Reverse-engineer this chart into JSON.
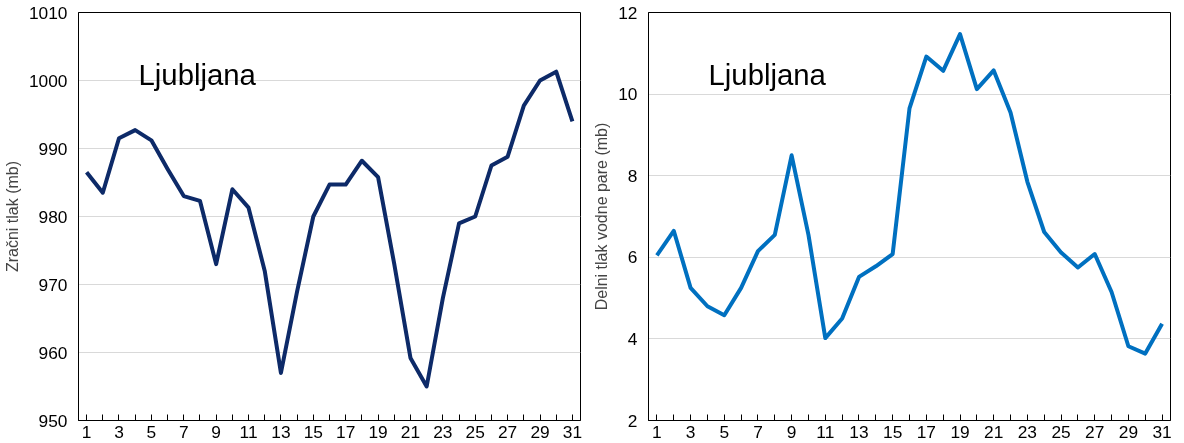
{
  "chart_data": [
    {
      "type": "line",
      "ylabel": "Zračni tlak (mb)",
      "annotations": [
        "Ljubljana"
      ],
      "x": [
        1,
        2,
        3,
        4,
        5,
        6,
        7,
        8,
        9,
        10,
        11,
        12,
        13,
        14,
        15,
        16,
        17,
        18,
        19,
        20,
        21,
        22,
        23,
        24,
        25,
        26,
        27,
        28,
        29,
        30,
        31
      ],
      "xlim": [
        0.5,
        31.5
      ],
      "xticks": [
        1,
        {
          "value": 2,
          "label": null
        },
        3,
        {
          "value": 4,
          "label": null
        },
        5,
        {
          "value": 6,
          "label": null
        },
        7,
        {
          "value": 8,
          "label": null
        },
        9,
        {
          "value": 10,
          "label": null
        },
        11,
        {
          "value": 12,
          "label": null
        },
        13,
        {
          "value": 14,
          "label": null
        },
        15,
        {
          "value": 16,
          "label": null
        },
        17,
        {
          "value": 18,
          "label": null
        },
        19,
        {
          "value": 20,
          "label": null
        },
        21,
        {
          "value": 22,
          "label": null
        },
        23,
        {
          "value": 24,
          "label": null
        },
        25,
        {
          "value": 26,
          "label": null
        },
        27,
        {
          "value": 28,
          "label": null
        },
        29,
        {
          "value": 30,
          "label": null
        },
        31
      ],
      "ylim": [
        950,
        1010
      ],
      "yticks": [
        950,
        960,
        970,
        980,
        990,
        1000,
        1010
      ],
      "grid": "y",
      "series": [
        {
          "color": "#0d2a68",
          "values": [
            986.5,
            983.5,
            991.5,
            992.7,
            991.2,
            987,
            983,
            982.3,
            973,
            984,
            981.3,
            972,
            957,
            969,
            980,
            984.7,
            984.7,
            988.2,
            985.8,
            973,
            959.2,
            955,
            968,
            979,
            980,
            987.5,
            988.8,
            996.3,
            1000,
            1001.3,
            994
          ]
        }
      ]
    },
    {
      "type": "line",
      "ylabel": "Delni tlak vodne pare (mb)",
      "annotations": [
        "Ljubljana"
      ],
      "x": [
        1,
        2,
        3,
        4,
        5,
        6,
        7,
        8,
        9,
        10,
        11,
        12,
        13,
        14,
        15,
        16,
        17,
        18,
        19,
        20,
        21,
        22,
        23,
        24,
        25,
        26,
        27,
        28,
        29,
        30,
        31
      ],
      "xlim": [
        0.5,
        31.5
      ],
      "xticks": [
        1,
        {
          "value": 2,
          "label": null
        },
        3,
        {
          "value": 4,
          "label": null
        },
        5,
        {
          "value": 6,
          "label": null
        },
        7,
        {
          "value": 8,
          "label": null
        },
        9,
        {
          "value": 10,
          "label": null
        },
        11,
        {
          "value": 12,
          "label": null
        },
        13,
        {
          "value": 14,
          "label": null
        },
        15,
        {
          "value": 16,
          "label": null
        },
        17,
        {
          "value": 18,
          "label": null
        },
        19,
        {
          "value": 20,
          "label": null
        },
        21,
        {
          "value": 22,
          "label": null
        },
        23,
        {
          "value": 24,
          "label": null
        },
        25,
        {
          "value": 26,
          "label": null
        },
        27,
        {
          "value": 28,
          "label": null
        },
        29,
        {
          "value": 30,
          "label": null
        },
        31
      ],
      "ylim": [
        2,
        12
      ],
      "yticks": [
        2,
        4,
        6,
        8,
        10,
        12
      ],
      "grid": "y",
      "series": [
        {
          "color": "#0070c0",
          "values": [
            6.05,
            6.65,
            5.25,
            4.8,
            4.58,
            5.25,
            6.15,
            6.55,
            8.5,
            6.55,
            4.02,
            4.5,
            5.52,
            5.78,
            6.08,
            9.65,
            10.92,
            10.57,
            11.47,
            10.12,
            10.58,
            9.55,
            7.85,
            6.62,
            6.12,
            5.75,
            6.08,
            5.15,
            3.82,
            3.64,
            4.37
          ]
        }
      ]
    }
  ]
}
